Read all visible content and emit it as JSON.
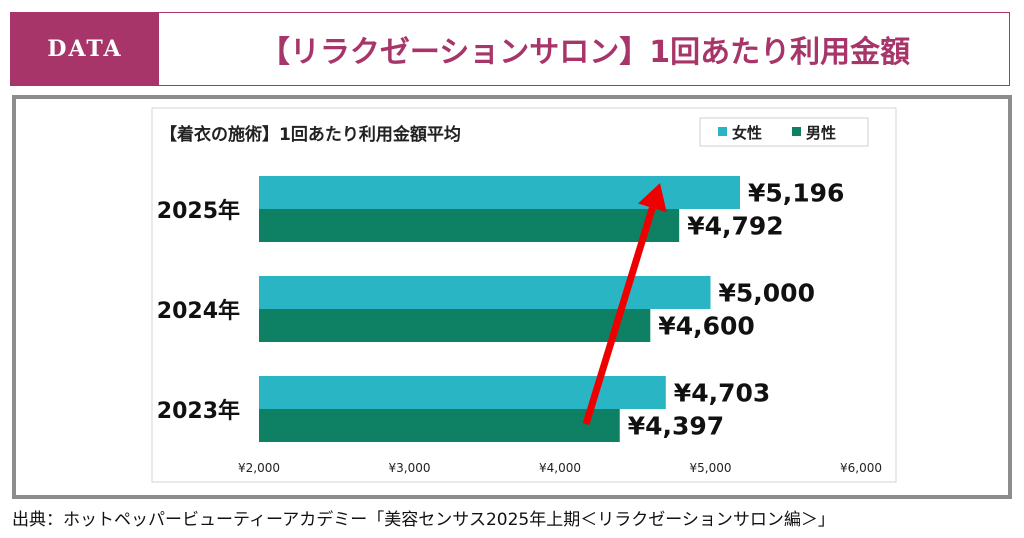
{
  "header": {
    "badge": "DATA",
    "title": "【リラクゼーションサロン】1回あたり利用金額"
  },
  "source": "出典：ホットペッパービューティーアカデミー「美容センサス2025年上期＜リラクゼーションサロン編＞」",
  "colors": {
    "accent": "#a8356a",
    "female": "#2ab5c5",
    "male": "#0e8064",
    "arrow": "#ee0000",
    "frame": "#8c8c8c"
  },
  "chart_data": {
    "type": "bar",
    "orientation": "horizontal",
    "title": "【着衣の施術】1回あたり利用金額平均",
    "categories": [
      "2025年",
      "2024年",
      "2023年"
    ],
    "series": [
      {
        "name": "女性",
        "values": [
          5196,
          5000,
          4703
        ],
        "labels": [
          "¥5,196",
          "¥5,000",
          "¥4,703"
        ]
      },
      {
        "name": "男性",
        "values": [
          4792,
          4600,
          4397
        ],
        "labels": [
          "¥4,792",
          "¥4,600",
          "¥4,397"
        ]
      }
    ],
    "xlim": [
      2000,
      6000
    ],
    "xticks": [
      2000,
      3000,
      4000,
      5000,
      6000
    ],
    "xtick_labels": [
      "¥2,000",
      "¥3,000",
      "¥4,000",
      "¥5,000",
      "¥6,000"
    ],
    "legend_position": "top-right",
    "grid": false,
    "annotation": "red upward arrow from 2023 to 2025"
  }
}
